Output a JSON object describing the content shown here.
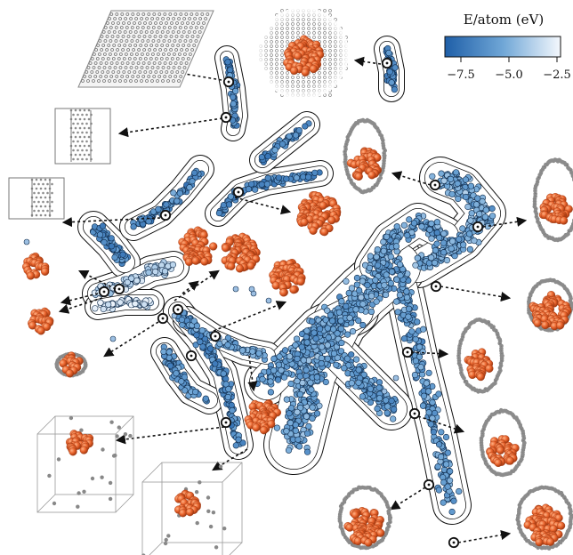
{
  "colorbar": {
    "title": "E/atom (eV)",
    "ticks": [
      "−7.5",
      "−5.0",
      "−2.5"
    ],
    "colors": {
      "low": "#1f5fa8",
      "mid": "#6fa6d6",
      "high": "#f2f7fc"
    }
  },
  "palette": {
    "cluster_fill": "#e8622b",
    "cluster_edge": "#a23a12",
    "carbon": "#8c8c8c",
    "carbon_bond": "#6e6e6e",
    "point_edge": "#0e2a4a",
    "contour": "#111111"
  }
}
